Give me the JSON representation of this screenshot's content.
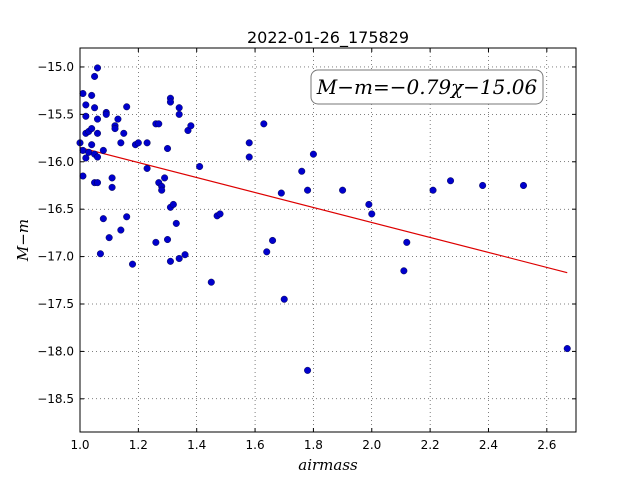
{
  "chart_data": {
    "type": "scatter",
    "title": "2022-01-26_175829",
    "xlabel": "airmass",
    "ylabel": "M−m",
    "annotation": "M−m=−0.79χ−15.06",
    "xlim": [
      1.0,
      2.7
    ],
    "ylim": [
      -18.85,
      -14.8
    ],
    "xticks": [
      1.0,
      1.2,
      1.4,
      1.6,
      1.8,
      2.0,
      2.2,
      2.4,
      2.6
    ],
    "xtick_labels": [
      "1.0",
      "1.2",
      "1.4",
      "1.6",
      "1.8",
      "2.0",
      "2.2",
      "2.4",
      "2.6"
    ],
    "yticks": [
      -15.0,
      -15.5,
      -16.0,
      -16.5,
      -17.0,
      -17.5,
      -18.0,
      -18.5
    ],
    "ytick_labels": [
      "−15.0",
      "−15.5",
      "−16.0",
      "−16.5",
      "−17.0",
      "−17.5",
      "−18.0",
      "−18.5"
    ],
    "grid": true,
    "marker_color": "#0000cc",
    "fit_color": "#dd0000",
    "fit": {
      "slope": -0.79,
      "intercept": -15.06,
      "x_range": [
        1.0,
        2.67
      ]
    },
    "points": [
      [
        1.0,
        -15.8
      ],
      [
        1.01,
        -15.28
      ],
      [
        1.01,
        -15.88
      ],
      [
        1.01,
        -16.15
      ],
      [
        1.02,
        -15.96
      ],
      [
        1.02,
        -15.52
      ],
      [
        1.02,
        -15.4
      ],
      [
        1.02,
        -15.7
      ],
      [
        1.03,
        -15.68
      ],
      [
        1.03,
        -15.9
      ],
      [
        1.04,
        -15.3
      ],
      [
        1.04,
        -15.82
      ],
      [
        1.04,
        -15.65
      ],
      [
        1.05,
        -15.1
      ],
      [
        1.05,
        -15.43
      ],
      [
        1.05,
        -16.22
      ],
      [
        1.05,
        -15.92
      ],
      [
        1.06,
        -15.01
      ],
      [
        1.06,
        -15.55
      ],
      [
        1.06,
        -15.7
      ],
      [
        1.06,
        -15.95
      ],
      [
        1.06,
        -16.22
      ],
      [
        1.07,
        -16.97
      ],
      [
        1.08,
        -16.6
      ],
      [
        1.08,
        -15.88
      ],
      [
        1.09,
        -15.48
      ],
      [
        1.09,
        -15.5
      ],
      [
        1.1,
        -16.8
      ],
      [
        1.11,
        -16.17
      ],
      [
        1.11,
        -16.27
      ],
      [
        1.12,
        -15.62
      ],
      [
        1.12,
        -15.65
      ],
      [
        1.13,
        -15.55
      ],
      [
        1.14,
        -16.72
      ],
      [
        1.14,
        -15.8
      ],
      [
        1.15,
        -15.7
      ],
      [
        1.16,
        -15.42
      ],
      [
        1.16,
        -16.58
      ],
      [
        1.18,
        -17.08
      ],
      [
        1.19,
        -15.82
      ],
      [
        1.2,
        -15.8
      ],
      [
        1.23,
        -16.07
      ],
      [
        1.23,
        -15.8
      ],
      [
        1.26,
        -15.6
      ],
      [
        1.26,
        -16.85
      ],
      [
        1.27,
        -15.6
      ],
      [
        1.27,
        -16.22
      ],
      [
        1.28,
        -16.26
      ],
      [
        1.28,
        -16.3
      ],
      [
        1.29,
        -16.17
      ],
      [
        1.3,
        -15.86
      ],
      [
        1.3,
        -16.82
      ],
      [
        1.31,
        -15.33
      ],
      [
        1.31,
        -15.37
      ],
      [
        1.31,
        -16.48
      ],
      [
        1.31,
        -17.05
      ],
      [
        1.32,
        -16.45
      ],
      [
        1.33,
        -16.65
      ],
      [
        1.34,
        -15.43
      ],
      [
        1.34,
        -15.5
      ],
      [
        1.34,
        -17.02
      ],
      [
        1.36,
        -16.98
      ],
      [
        1.37,
        -15.67
      ],
      [
        1.38,
        -15.62
      ],
      [
        1.41,
        -16.05
      ],
      [
        1.45,
        -17.27
      ],
      [
        1.47,
        -16.57
      ],
      [
        1.48,
        -16.55
      ],
      [
        1.58,
        -15.8
      ],
      [
        1.58,
        -15.95
      ],
      [
        1.63,
        -15.6
      ],
      [
        1.64,
        -16.95
      ],
      [
        1.66,
        -16.83
      ],
      [
        1.69,
        -16.33
      ],
      [
        1.7,
        -17.45
      ],
      [
        1.76,
        -16.1
      ],
      [
        1.78,
        -16.3
      ],
      [
        1.78,
        -18.2
      ],
      [
        1.8,
        -15.92
      ],
      [
        1.9,
        -16.3
      ],
      [
        1.99,
        -16.45
      ],
      [
        2.0,
        -16.55
      ],
      [
        2.11,
        -17.15
      ],
      [
        2.12,
        -16.85
      ],
      [
        2.21,
        -16.3
      ],
      [
        2.27,
        -16.2
      ],
      [
        2.38,
        -16.25
      ],
      [
        2.52,
        -16.25
      ],
      [
        2.67,
        -17.97
      ]
    ]
  }
}
